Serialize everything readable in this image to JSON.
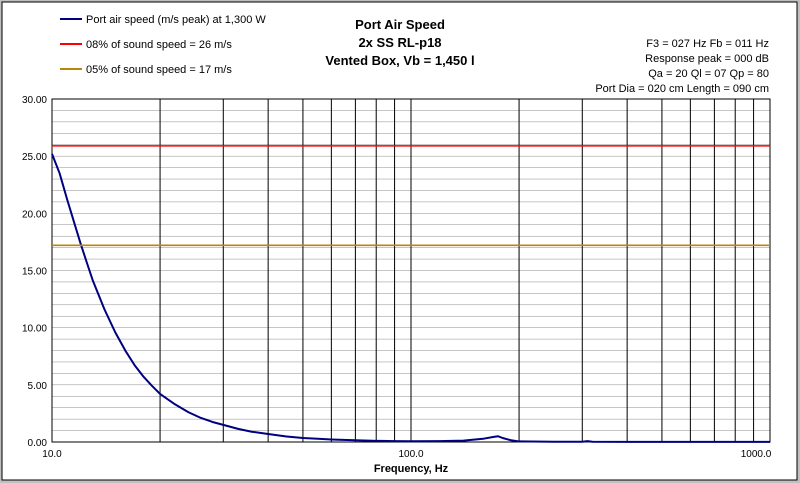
{
  "chart_data": {
    "type": "line",
    "title_lines": [
      "Port Air Speed",
      "2x SS RL-p18",
      "Vented Box, Vb = 1,450 l"
    ],
    "info_lines": [
      "F3 = 027 Hz  Fb = 011 Hz",
      "Response peak = 000 dB",
      "Qa = 20  Ql = 07  Qp = 80",
      "Port Dia = 020 cm  Length = 090 cm"
    ],
    "xlabel": "Frequency, Hz",
    "x_scale": "log",
    "xlim": [
      10,
      1000
    ],
    "ylim": [
      0,
      30
    ],
    "x_tick_labels": [
      {
        "value": 10,
        "label": "10.0"
      },
      {
        "value": 100,
        "label": "100.0"
      },
      {
        "value": 1000,
        "label": "1000.0"
      }
    ],
    "y_tick_labels": [
      {
        "value": 0,
        "label": "0.00"
      },
      {
        "value": 5,
        "label": "5.00"
      },
      {
        "value": 10,
        "label": "10.00"
      },
      {
        "value": 15,
        "label": "15.00"
      },
      {
        "value": 20,
        "label": "20.00"
      },
      {
        "value": 25,
        "label": "25.00"
      },
      {
        "value": 30,
        "label": "30.00"
      }
    ],
    "grid": true,
    "legend_position": "top-left",
    "series": [
      {
        "name": "Port air speed (m/s peak) at 1,300 W",
        "color": "#000080",
        "x": [
          10,
          10.5,
          11,
          11.5,
          12,
          12.5,
          13,
          14,
          15,
          16,
          17,
          18,
          19,
          20,
          22,
          24,
          26,
          28,
          30,
          33,
          36,
          40,
          45,
          50,
          55,
          60,
          70,
          80,
          90,
          100,
          120,
          140,
          160,
          170,
          175,
          180,
          190,
          200,
          250,
          300,
          310,
          320,
          400,
          500,
          700,
          1000
        ],
        "y": [
          25.2,
          23.5,
          21.3,
          19.3,
          17.4,
          15.7,
          14.1,
          11.6,
          9.6,
          8.0,
          6.7,
          5.7,
          4.9,
          4.2,
          3.3,
          2.6,
          2.1,
          1.75,
          1.5,
          1.15,
          0.9,
          0.7,
          0.48,
          0.35,
          0.28,
          0.22,
          0.15,
          0.1,
          0.08,
          0.07,
          0.08,
          0.12,
          0.3,
          0.45,
          0.5,
          0.35,
          0.15,
          0.05,
          0.02,
          0.02,
          0.08,
          0.02,
          0.01,
          0.01,
          0.01,
          0.01
        ]
      },
      {
        "name": "08% of sound speed = 26 m/s",
        "color": "#ff0000",
        "x": [
          10,
          1000
        ],
        "y": [
          25.9,
          25.9
        ]
      },
      {
        "name": "05% of sound speed = 17 m/s",
        "color": "#b8860b",
        "x": [
          10,
          1000
        ],
        "y": [
          17.2,
          17.2
        ]
      }
    ]
  }
}
